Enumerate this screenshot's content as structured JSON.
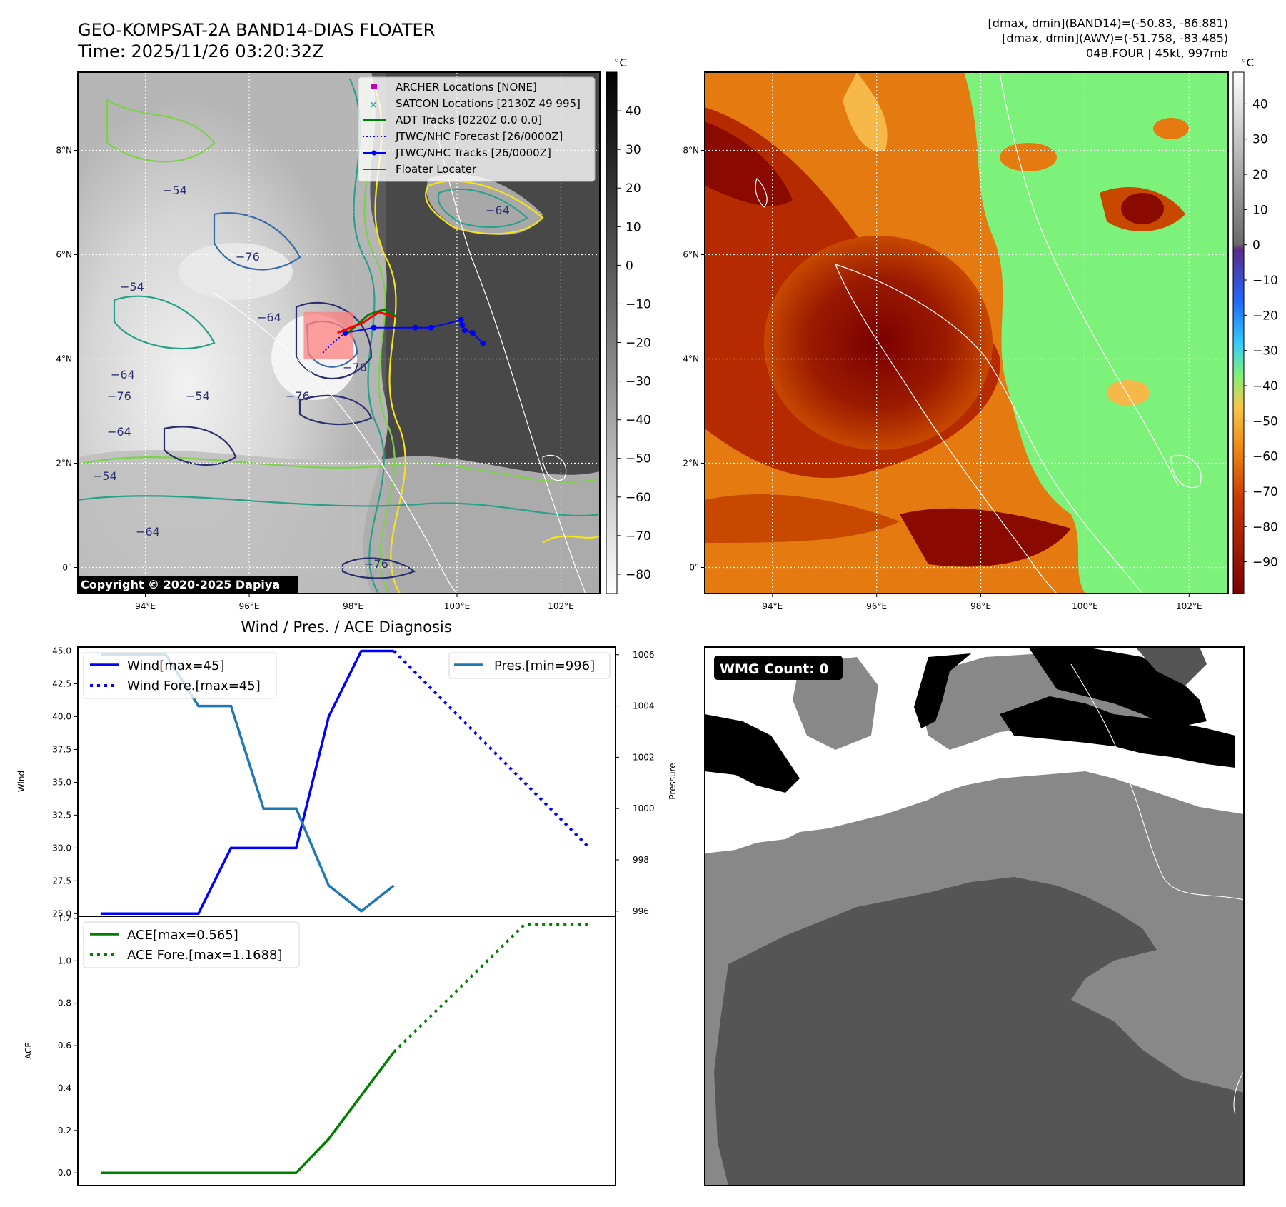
{
  "header": {
    "title_line1": "GEO-KOMPSAT-2A BAND14-DIAS FLOATER",
    "title_line2": "Time: 2025/11/26 03:20:32Z",
    "stats_line1": "[dmax, dmin](BAND14)=(-50.83, -86.881)",
    "stats_line2": "[dmax, dmin](AWV)=(-51.758, -83.485)",
    "stats_line3": "04B.FOUR | 45kt, 997mb"
  },
  "map_axes": {
    "lon_ticks": [
      "94°E",
      "96°E",
      "98°E",
      "100°E",
      "102°E"
    ],
    "lat_ticks": [
      "8°N",
      "6°N",
      "4°N",
      "2°N",
      "0°"
    ],
    "lon_values": [
      94,
      96,
      98,
      100,
      102
    ],
    "lat_values": [
      8,
      6,
      4,
      2,
      0
    ],
    "lon_range": [
      92.7,
      102.75
    ],
    "lat_range": [
      -0.5,
      9.5
    ]
  },
  "ir_panel": {
    "colorbar_unit": "°C",
    "colorbar_ticks": [
      "40",
      "30",
      "20",
      "10",
      "0",
      "−10",
      "−20",
      "−30",
      "−40",
      "−50",
      "−60",
      "−70",
      "−80"
    ],
    "colorbar_values": [
      40,
      30,
      20,
      10,
      0,
      -10,
      -20,
      -30,
      -40,
      -50,
      -60,
      -70,
      -80
    ],
    "colorbar_range": [
      -85,
      50
    ],
    "copyright": "Copyright © 2020-2025 Dapiya",
    "contour_labels": [
      "−54",
      "−54",
      "−54",
      "−54",
      "−64",
      "−64",
      "−64",
      "−64",
      "−76",
      "−76",
      "−76",
      "−76",
      "−64",
      "−76"
    ],
    "legend": [
      {
        "label": "ARCHER Locations [NONE]",
        "color": "#bf00bf",
        "marker": "square"
      },
      {
        "label": "SATCON Locations [2130Z 49 995]",
        "color": "#00bfbf",
        "marker": "x"
      },
      {
        "label": "ADT Tracks [0220Z 0.0 0.0]",
        "color": "#008000",
        "marker": "line"
      },
      {
        "label": "JTWC/NHC Forecast [26/0000Z]",
        "color": "#0000ff",
        "marker": "dotted"
      },
      {
        "label": "JTWC/NHC Tracks [26/0000Z]",
        "color": "#0000ff",
        "marker": "line-dot"
      },
      {
        "label": "Floater Locater",
        "color": "#ff0000",
        "marker": "line"
      }
    ],
    "jtwc_track": [
      [
        100.5,
        4.3
      ],
      [
        100.3,
        4.5
      ],
      [
        100.15,
        4.55
      ],
      [
        100.1,
        4.65
      ],
      [
        100.08,
        4.75
      ],
      [
        99.5,
        4.6
      ],
      [
        99.2,
        4.6
      ],
      [
        98.4,
        4.6
      ],
      [
        97.85,
        4.5
      ]
    ],
    "jtwc_forecast": [
      [
        97.85,
        4.5
      ],
      [
        97.6,
        4.3
      ],
      [
        97.4,
        4.1
      ]
    ],
    "adt_track": [
      [
        97.9,
        4.5
      ],
      [
        98.3,
        4.85
      ],
      [
        98.6,
        4.95
      ],
      [
        98.85,
        4.8
      ]
    ],
    "floater_track": [
      [
        97.7,
        4.5
      ],
      [
        98.2,
        4.7
      ],
      [
        98.5,
        4.9
      ],
      [
        98.8,
        4.8
      ]
    ],
    "floater_box": [
      [
        97.05,
        4.0
      ],
      [
        98.0,
        4.9
      ]
    ]
  },
  "awv_panel": {
    "colorbar_unit": "°C",
    "colorbar_ticks": [
      "40",
      "30",
      "20",
      "10",
      "0",
      "−10",
      "−20",
      "−30",
      "−40",
      "−50",
      "−60",
      "−70",
      "−80",
      "−90"
    ],
    "colorbar_values": [
      40,
      30,
      20,
      10,
      0,
      -10,
      -20,
      -30,
      -40,
      -50,
      -60,
      -70,
      -80,
      -90
    ],
    "colorbar_range": [
      -99,
      49
    ]
  },
  "diagnosis": {
    "title": "Wind / Pres. / ACE Diagnosis",
    "wind_ylabel": "Wind",
    "pressure_ylabel": "Pressure",
    "ace_ylabel": "ACE",
    "wind_ticks": [
      "45.0",
      "42.5",
      "40.0",
      "37.5",
      "35.0",
      "32.5",
      "30.0",
      "27.5",
      "25.0"
    ],
    "wind_tick_values": [
      45,
      42.5,
      40,
      37.5,
      35,
      32.5,
      30,
      27.5,
      25
    ],
    "pressure_ticks": [
      "1006",
      "1004",
      "1002",
      "1000",
      "998",
      "996"
    ],
    "pressure_tick_values": [
      1006,
      1004,
      1002,
      1000,
      998,
      996
    ],
    "ace_ticks": [
      "1.2",
      "1.0",
      "0.8",
      "0.6",
      "0.4",
      "0.2",
      "0.0"
    ],
    "ace_tick_values": [
      1.2,
      1.0,
      0.8,
      0.6,
      0.4,
      0.2,
      0.0
    ]
  },
  "chart_data": [
    {
      "type": "line",
      "x": [
        0,
        1,
        2,
        3,
        4,
        5,
        6,
        7,
        8,
        9
      ],
      "series": [
        {
          "name": "Wind[max=45]",
          "color": "#0000ff",
          "style": "solid",
          "x": [
            0,
            1,
            2,
            3,
            4,
            5,
            6,
            7,
            8,
            9
          ],
          "values": [
            25,
            25,
            25,
            25,
            30,
            30,
            30,
            40,
            45,
            45
          ]
        },
        {
          "name": "Wind Fore.[max=45]",
          "color": "#0000ff",
          "style": "dotted",
          "x": [
            9,
            15
          ],
          "values": [
            45,
            30
          ]
        },
        {
          "name": "Pres.[min=996]",
          "color": "#1f77b4",
          "style": "solid",
          "axis": "right",
          "x": [
            0,
            1,
            2,
            3,
            4,
            5,
            6,
            7,
            8,
            9
          ],
          "values": [
            1006,
            1006,
            1006,
            1004,
            1004,
            1000,
            1000,
            997,
            996,
            997
          ]
        }
      ],
      "ylim": [
        24.8,
        45.3
      ],
      "ylim_right": [
        995.8,
        1006.3
      ],
      "xlabel": "",
      "ylabel": "Wind",
      "ylabel_right": "Pressure",
      "legend": "top-left / top-right",
      "grid": false
    },
    {
      "type": "line",
      "series": [
        {
          "name": "ACE[max=0.565]",
          "color": "#008000",
          "style": "solid",
          "x": [
            0,
            1,
            2,
            3,
            4,
            5,
            6,
            7,
            8,
            9
          ],
          "values": [
            0,
            0,
            0,
            0,
            0,
            0,
            0,
            0.16,
            0.365,
            0.57
          ]
        },
        {
          "name": "ACE Fore.[max=1.1688]",
          "color": "#008000",
          "style": "dotted",
          "x": [
            9,
            13,
            15
          ],
          "values": [
            0.57,
            1.17,
            1.17
          ]
        }
      ],
      "ylim": [
        -0.06,
        1.21
      ],
      "ylabel": "ACE",
      "legend": "top-left",
      "grid": false
    }
  ],
  "wmg_panel": {
    "label": "WMG Count: 0"
  },
  "colors": {
    "band_yellow": "#f5e31c",
    "band_lightgreen": "#7dd14a",
    "band_teal": "#28a08a",
    "band_blue": "#3a6aa8",
    "band_navy": "#2a2f6e",
    "floater_red": "#ff0000",
    "awv_green": "#7cf27a",
    "awv_brown": "#8a0a00"
  }
}
